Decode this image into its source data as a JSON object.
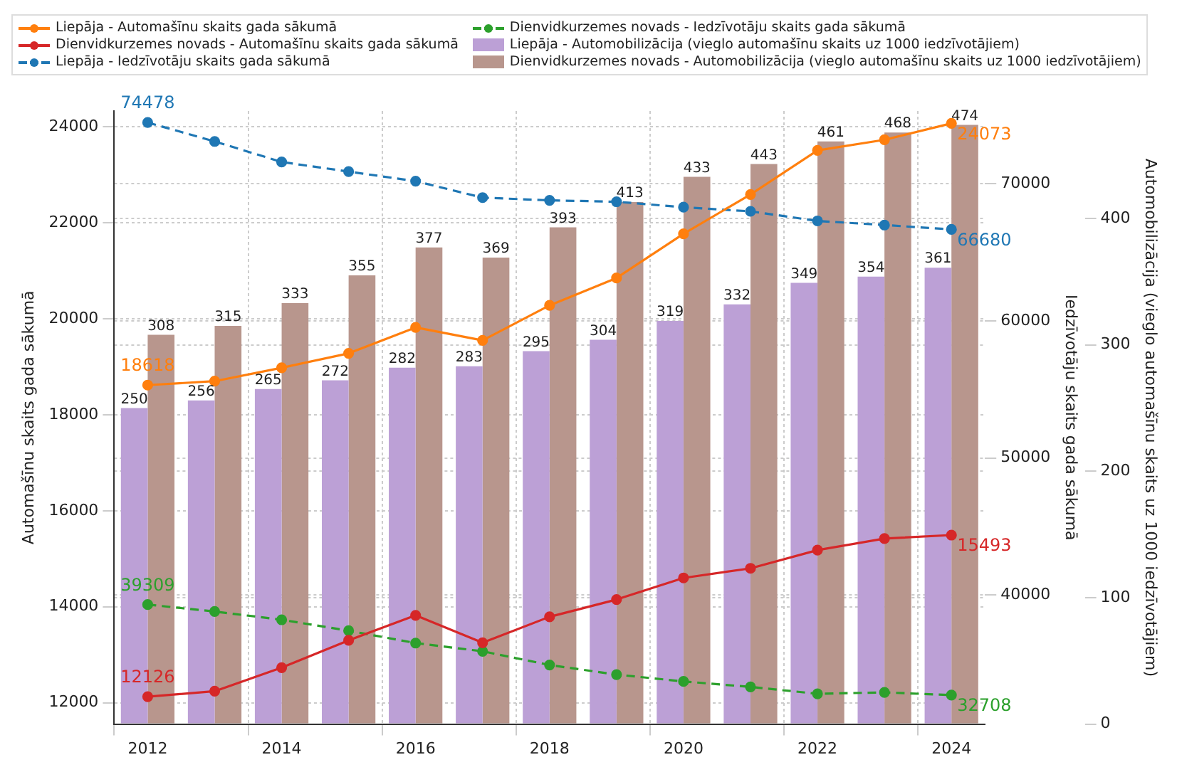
{
  "chart_data": {
    "type": "bar",
    "categories": [
      "2012",
      null,
      "2014",
      null,
      "2016",
      null,
      "2018",
      null,
      "2020",
      null,
      "2022",
      null,
      "2024"
    ],
    "ylabel": "Automašīnu skaits gada sākumā",
    "y2label": "Iedzīvotāju skaits gada sākumā",
    "y3label": "Automobilizācija (vieglo automašīnu skaits uz 1000 iedzīvotājiem)",
    "ylim": [
      11555,
      24330
    ],
    "yticks": [
      12000,
      14000,
      16000,
      18000,
      20000,
      22000,
      24000
    ],
    "y2lim": [
      30590,
      75320
    ],
    "y2ticks": [
      40000,
      50000,
      60000,
      70000
    ],
    "y3lim": [
      0,
      485
    ],
    "y3ticks": [
      0,
      100,
      200,
      300,
      400
    ],
    "grid": true,
    "legend": "top",
    "marker": "circle",
    "series": [
      {
        "name": "Liepāja - Automašīnu skaits gada sākumā",
        "type": "line",
        "color": "#ff7f0e",
        "line_style": "solid",
        "values": [
          18618,
          18700,
          18980,
          19280,
          19820,
          19550,
          20280,
          20850,
          21770,
          22590,
          23510,
          23730,
          24073
        ],
        "value_labels": [
          "18618",
          null,
          null,
          null,
          null,
          null,
          null,
          null,
          null,
          null,
          null,
          null,
          "24073"
        ]
      },
      {
        "name": "Dienvidkurzemes novads - Automašīnu skaits gada sākumā",
        "type": "line",
        "color": "#d62728",
        "line_style": "solid",
        "values": [
          12126,
          12240,
          12730,
          13300,
          13820,
          13250,
          13790,
          14150,
          14600,
          14800,
          15180,
          15420,
          15493
        ],
        "value_labels": [
          "12126",
          null,
          null,
          null,
          null,
          null,
          null,
          null,
          null,
          null,
          null,
          null,
          "15493"
        ]
      },
      {
        "name": "Liepāja - Iedzīvotāju skaits gada sākumā",
        "type": "line",
        "axis": "y2",
        "color": "#1f77b4",
        "line_style": "dashed",
        "values": [
          74478,
          73100,
          71600,
          70900,
          70200,
          69000,
          68800,
          68700,
          68300,
          68000,
          67300,
          67000,
          66680
        ],
        "value_labels": [
          "74478",
          null,
          null,
          null,
          null,
          null,
          null,
          null,
          null,
          null,
          null,
          null,
          "66680"
        ]
      },
      {
        "name": "Dienvidkurzemes novads - Iedzīvotāju skaits gada sākumā",
        "type": "line",
        "axis": "y2",
        "color": "#2ca02c",
        "line_style": "dashed",
        "values": [
          39309,
          38800,
          38200,
          37400,
          36500,
          35900,
          34900,
          34200,
          33700,
          33300,
          32800,
          32900,
          32708
        ],
        "value_labels": [
          "39309",
          null,
          null,
          null,
          null,
          null,
          null,
          null,
          null,
          null,
          null,
          null,
          "32708"
        ]
      },
      {
        "name": "Liepāja - Automobilizācija (vieglo automašīnu skaits uz 1000 iedzīvotājiem)",
        "axis": "y3",
        "color": "#bca0d6",
        "values": [
          250,
          256,
          265,
          272,
          282,
          283,
          295,
          304,
          319,
          332,
          349,
          354,
          361
        ],
        "value_labels": [
          "250",
          "256",
          "265",
          "272",
          "282",
          "283",
          "295",
          "304",
          "319",
          "332",
          "349",
          "354",
          "361"
        ]
      },
      {
        "name": "Dienvidkurzemes novads - Automobilizācija (vieglo automašīnu skaits uz 1000 iedzīvotājiem)",
        "axis": "y3",
        "color": "#b8968d",
        "values": [
          308,
          315,
          333,
          355,
          377,
          369,
          393,
          413,
          433,
          443,
          461,
          468,
          474
        ],
        "value_labels": [
          "308",
          "315",
          "333",
          "355",
          "377",
          "369",
          "393",
          "413",
          "433",
          "443",
          "461",
          "468",
          "474"
        ]
      }
    ]
  }
}
